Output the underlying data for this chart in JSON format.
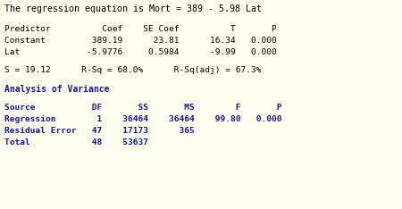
{
  "bg_color": "#FFFFF0",
  "black_text": "#000000",
  "blue_text": "#1414AA",
  "mono_font": "DejaVu Sans Mono",
  "title_line": "The regression equation is Mort = 389 - 5.98 Lat",
  "pred_header": "Predictor          Coef    SE Coef          T       P",
  "pred_row1": "Constant         389.19      23.81      16.34   0.000",
  "pred_row2": "Lat             -5.9776     0.5984      -9.99   0.000",
  "stats_line": "S = 19.12      R-Sq = 68.0%      R-Sq(adj) = 67.3%",
  "anova_header_label": "Analysis of Variance",
  "anova_col_header": "Source           DF       SS       MS        F       P",
  "anova_row1": "Regression        1    36464    36464    99.80   0.000",
  "anova_row2": "Residual Error   47    17173      365",
  "anova_row3": "Total            48    53637",
  "fs_title": 7.2,
  "fs_body": 6.8,
  "fs_blue_header": 7.0
}
